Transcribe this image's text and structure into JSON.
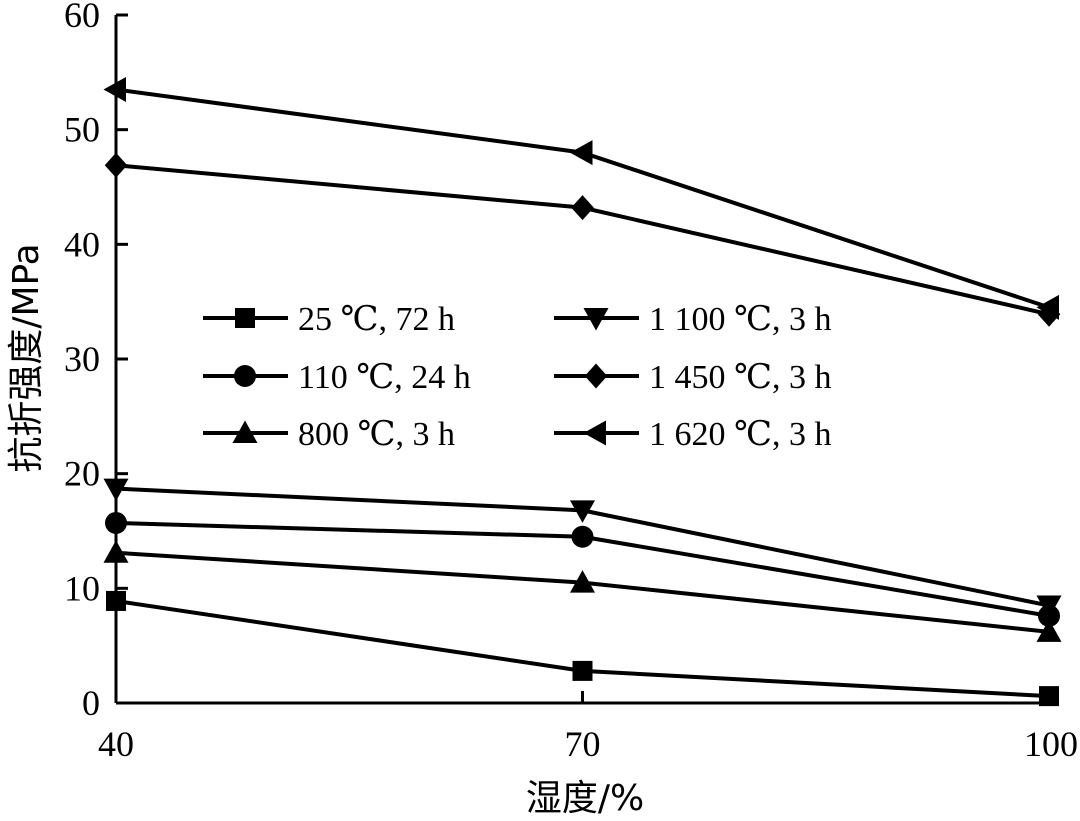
{
  "chart_data": {
    "type": "line",
    "xlabel": "湿度/%",
    "ylabel": "抗折强度/MPa",
    "x": [
      40,
      70,
      100
    ],
    "x_ticks": [
      "40",
      "70",
      "100"
    ],
    "y_ticks": [
      "0",
      "10",
      "20",
      "30",
      "40",
      "50",
      "60"
    ],
    "xlim": [
      40,
      100
    ],
    "ylim": [
      0,
      60
    ],
    "grid": false,
    "legend_position": "middle-center",
    "series": [
      {
        "name": "25 ℃, 72 h",
        "marker": "square",
        "values": [
          8.9,
          2.8,
          0.6
        ]
      },
      {
        "name": "110 ℃, 24 h",
        "marker": "circle",
        "values": [
          15.7,
          14.5,
          7.6
        ]
      },
      {
        "name": "800 ℃, 3 h",
        "marker": "triangle-up",
        "values": [
          13.1,
          10.5,
          6.2
        ]
      },
      {
        "name": "1 100 ℃, 3 h",
        "marker": "triangle-down",
        "values": [
          18.7,
          16.8,
          8.5
        ]
      },
      {
        "name": "1 450 ℃, 3 h",
        "marker": "diamond",
        "values": [
          46.9,
          43.2,
          33.9
        ]
      },
      {
        "name": "1 620 ℃, 3 h",
        "marker": "triangle-left",
        "values": [
          53.5,
          48.0,
          34.5
        ]
      }
    ],
    "legend_columns": [
      [
        "25 ℃, 72 h",
        "110 ℃, 24 h",
        "800 ℃, 3 h"
      ],
      [
        "1 100 ℃, 3 h",
        "1 450 ℃, 3 h",
        "1 620 ℃, 3 h"
      ]
    ]
  }
}
